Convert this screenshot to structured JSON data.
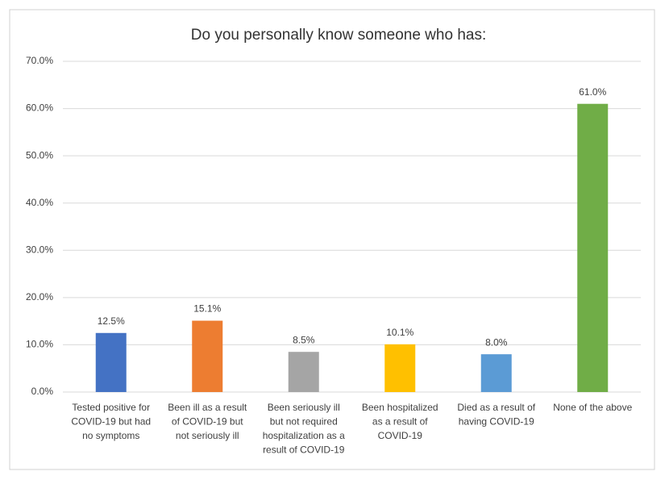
{
  "chart_data": {
    "type": "bar",
    "title": "Do you personally know someone who has:",
    "categories": [
      [
        "Tested positive for",
        "COVID-19 but had",
        "no symptoms"
      ],
      [
        "Been ill as a result",
        "of COVID-19 but",
        "not seriously ill"
      ],
      [
        "Been seriously ill",
        "but not required",
        "hospitalization as a",
        "result of COVID-19"
      ],
      [
        "Been hospitalized",
        "as a result of",
        "COVID-19"
      ],
      [
        "Died as a result of",
        "having COVID-19"
      ],
      [
        "None of the above"
      ]
    ],
    "values": [
      12.5,
      15.1,
      8.5,
      10.1,
      8.0,
      61.0
    ],
    "value_labels": [
      "12.5%",
      "15.1%",
      "8.5%",
      "10.1%",
      "8.0%",
      "61.0%"
    ],
    "colors": [
      "#4472c4",
      "#ed7d31",
      "#a5a5a5",
      "#ffc000",
      "#5b9bd5",
      "#70ad47"
    ],
    "ylim": [
      0,
      70
    ],
    "yticks": [
      {
        "value": 0,
        "label": "0.0%"
      },
      {
        "value": 10,
        "label": "10.0%"
      },
      {
        "value": 20,
        "label": "20.0%"
      },
      {
        "value": 30,
        "label": "30.0%"
      },
      {
        "value": 40,
        "label": "40.0%"
      },
      {
        "value": 50,
        "label": "50.0%"
      },
      {
        "value": 60,
        "label": "60.0%"
      },
      {
        "value": 70,
        "label": "70.0%"
      }
    ],
    "grid": true
  }
}
